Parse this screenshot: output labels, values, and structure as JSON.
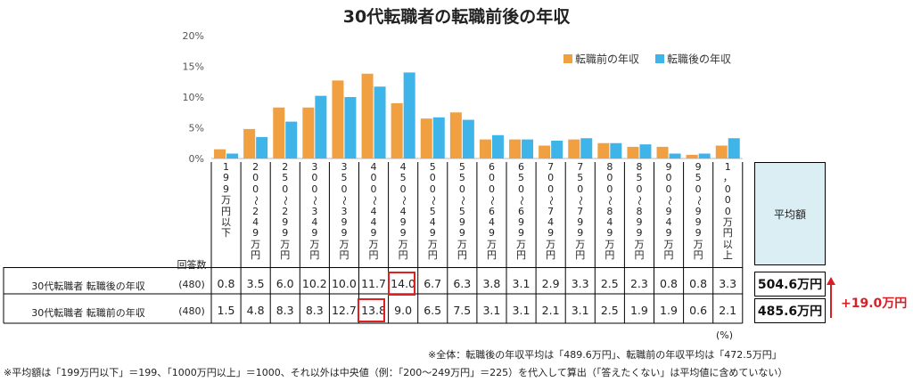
{
  "chart_data": {
    "type": "bar",
    "title": "30代転職者の転職前後の年収",
    "categories": [
      "199万円以下",
      "200〜249万円",
      "250〜299万円",
      "300〜349万円",
      "350〜399万円",
      "400〜449万円",
      "450〜499万円",
      "500〜549万円",
      "550〜599万円",
      "600〜649万円",
      "650〜699万円",
      "700〜749万円",
      "750〜799万円",
      "800〜849万円",
      "850〜899万円",
      "900〜949万円",
      "950〜999万円",
      "1，000万円以上"
    ],
    "series": [
      {
        "name": "転職前の年収",
        "color": "#f0a040",
        "values": [
          1.5,
          4.8,
          8.3,
          8.3,
          12.7,
          13.8,
          9.0,
          6.5,
          7.5,
          3.1,
          3.1,
          2.1,
          3.1,
          2.5,
          1.9,
          1.9,
          0.6,
          2.1
        ]
      },
      {
        "name": "転職後の年収",
        "color": "#3fb4e8",
        "values": [
          0.8,
          3.5,
          6.0,
          10.2,
          10.0,
          11.7,
          14.0,
          6.7,
          6.3,
          3.8,
          3.1,
          2.9,
          3.3,
          2.5,
          2.3,
          0.8,
          0.8,
          3.3
        ]
      }
    ],
    "ylim": [
      0,
      20
    ],
    "yticks": [
      "0%",
      "5%",
      "10%",
      "15%",
      "20%"
    ],
    "legend_position": "top-right",
    "grid": false
  },
  "table": {
    "n_header": "回答数",
    "avg_header": "平均額",
    "rows": [
      {
        "label": "30代転職者 転職後の年収",
        "n": "(480)",
        "values": [
          "0.8",
          "3.5",
          "6.0",
          "10.2",
          "10.0",
          "11.7",
          "14.0",
          "6.7",
          "6.3",
          "3.8",
          "3.1",
          "2.9",
          "3.3",
          "2.5",
          "2.3",
          "0.8",
          "0.8",
          "3.3"
        ],
        "avg": "504.6万円"
      },
      {
        "label": "30代転職者 転職前の年収",
        "n": "(480)",
        "values": [
          "1.5",
          "4.8",
          "8.3",
          "8.3",
          "12.7",
          "13.8",
          "9.0",
          "6.5",
          "7.5",
          "3.1",
          "3.1",
          "2.1",
          "3.1",
          "2.5",
          "1.9",
          "1.9",
          "0.6",
          "2.1"
        ],
        "avg": "485.6万円"
      }
    ],
    "highlight_color": "#e02020"
  },
  "difference": {
    "label": "+19.0万円",
    "color": "#d52027"
  },
  "unit_note": "(%)",
  "notes": [
    "※全体：転職後の年収平均は「489.6万円」、転職前の年収平均は「472.5万円」",
    "※平均額は「199万円以下」＝199、「1000万円以上」＝1000、それ以外は中央値（例：「200〜249万円」＝225）を代入して算出（「答えたくない」は平均値に含めていない）"
  ]
}
